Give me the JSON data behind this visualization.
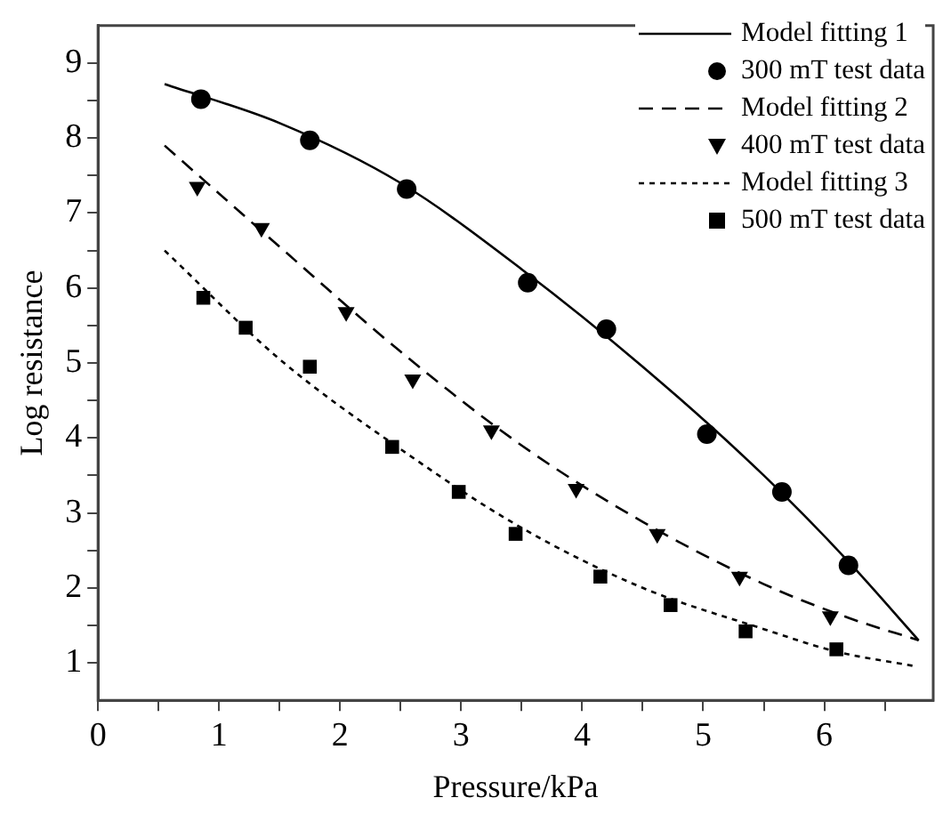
{
  "chart_data": {
    "type": "line",
    "xlabel": "Pressure/kPa",
    "ylabel": "Log resistance",
    "xlim": [
      0,
      6.9
    ],
    "ylim": [
      0.5,
      9.5
    ],
    "xticks": [
      0,
      {
        "value": 0.5,
        "label": null
      },
      1,
      {
        "value": 1.5,
        "label": null
      },
      2,
      {
        "value": 2.5,
        "label": null
      },
      3,
      {
        "value": 3.5,
        "label": null
      },
      4,
      {
        "value": 4.5,
        "label": null
      },
      5,
      {
        "value": 5.5,
        "label": null
      },
      6,
      {
        "value": 6.5,
        "label": null
      }
    ],
    "yticks": [
      {
        "value": 1,
        "label": "1"
      },
      {
        "value": 1.5,
        "label": null
      },
      2,
      {
        "value": 2.5,
        "label": null
      },
      3,
      {
        "value": 3.5,
        "label": null
      },
      4,
      {
        "value": 4.5,
        "label": null
      },
      5,
      {
        "value": 5.5,
        "label": null
      },
      6,
      {
        "value": 6.5,
        "label": null
      },
      7,
      {
        "value": 7.5,
        "label": null
      },
      8,
      {
        "value": 8.5,
        "label": null
      },
      9
    ],
    "grid": false,
    "legend": "top right",
    "series": [
      {
        "name": "Model fitting 1",
        "type": "line",
        "color": "#000000",
        "marker": "none",
        "line_style": "solid",
        "x": [
          0.55,
          1.5,
          2.5,
          3.5,
          4.5,
          5.5,
          6.2,
          6.78
        ],
        "values": [
          8.72,
          8.2,
          7.4,
          6.25,
          4.95,
          3.5,
          2.35,
          1.3
        ]
      },
      {
        "name": "300 mT test data",
        "type": "scatter",
        "color": "#000000",
        "marker": "circle",
        "x": [
          0.85,
          1.75,
          2.55,
          3.55,
          4.2,
          5.03,
          5.65,
          6.2
        ],
        "values": [
          8.52,
          7.97,
          7.32,
          6.07,
          5.45,
          4.05,
          3.28,
          2.3
        ]
      },
      {
        "name": "Model fitting 2",
        "type": "line",
        "color": "#000000",
        "marker": "none",
        "line_style": "dashed",
        "x": [
          0.55,
          1.5,
          2.5,
          3.5,
          4.5,
          5.5,
          6.2,
          6.78
        ],
        "values": [
          7.9,
          6.55,
          5.15,
          3.9,
          2.88,
          2.05,
          1.6,
          1.3
        ]
      },
      {
        "name": "400 mT test data",
        "type": "scatter",
        "color": "#000000",
        "marker": "triangle",
        "x": [
          0.82,
          1.35,
          2.05,
          2.6,
          3.25,
          3.95,
          4.62,
          5.3,
          6.05
        ],
        "values": [
          7.35,
          6.8,
          5.68,
          4.78,
          4.1,
          3.32,
          2.72,
          2.15,
          1.62
        ]
      },
      {
        "name": "Model fitting 3",
        "type": "line",
        "color": "#000000",
        "marker": "none",
        "line_style": "dotted",
        "x": [
          0.55,
          1.5,
          2.5,
          3.5,
          4.5,
          5.5,
          6.1,
          6.73
        ],
        "values": [
          6.5,
          5.05,
          3.85,
          2.8,
          2.0,
          1.45,
          1.15,
          0.96
        ]
      },
      {
        "name": "500 mT test data",
        "type": "scatter",
        "color": "#000000",
        "marker": "square",
        "x": [
          0.87,
          1.22,
          1.75,
          2.43,
          2.98,
          3.45,
          4.15,
          4.73,
          5.35,
          6.1
        ],
        "values": [
          5.87,
          5.47,
          4.95,
          3.88,
          3.28,
          2.72,
          2.15,
          1.77,
          1.42,
          1.18
        ]
      }
    ]
  }
}
